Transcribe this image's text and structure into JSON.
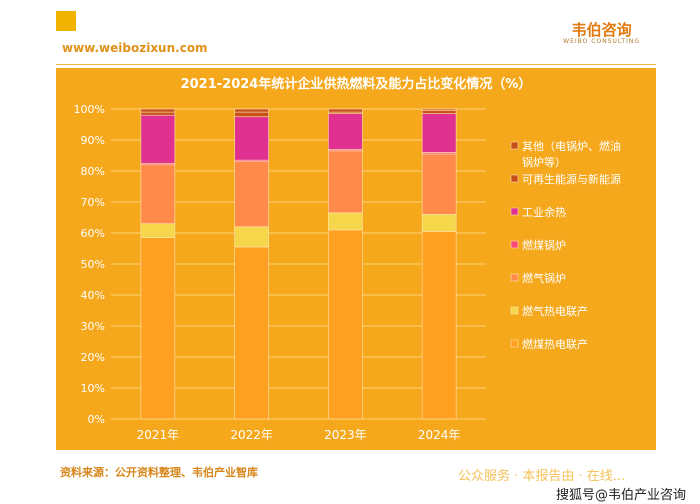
{
  "header": {
    "brand_name": "韦伯咨询",
    "brand_sub": "WEIBO CONSULTING",
    "site_url": "www.weibozixun.com"
  },
  "footer": {
    "source": "资料来源：公开资料整理、韦伯产业智库",
    "watermark_1": "公众服务 · 本报告由 · 在线...",
    "watermark_2": "搜狐号@韦伯产业咨询"
  },
  "colors": {
    "panel": "#f5a81c",
    "series": [
      "#ffa020",
      "#f6d64a",
      "#ff8a4a",
      "#ff4a78",
      "#e03090",
      "#c8501a"
    ]
  },
  "chart_data": {
    "type": "bar",
    "stacked": true,
    "title": "2021-2024年统计企业供热燃料及能力占比变化情况（%）",
    "categories": [
      "2021年",
      "2022年",
      "2023年",
      "2024年"
    ],
    "ylim": [
      0,
      100
    ],
    "yticks": [
      "0%",
      "10%",
      "20%",
      "30%",
      "40%",
      "50%",
      "60%",
      "70%",
      "80%",
      "90%",
      "100%"
    ],
    "grid": true,
    "legend_position": "right",
    "series": [
      {
        "name": "燃煤热电联产",
        "values": [
          58.5,
          55.5,
          61.0,
          60.5
        ]
      },
      {
        "name": "燃气热电联产",
        "values": [
          4.5,
          6.5,
          5.5,
          5.5
        ]
      },
      {
        "name": "燃气锅炉",
        "values": [
          19.0,
          21.0,
          20.0,
          19.5
        ]
      },
      {
        "name": "燃煤锅炉",
        "values": [
          0.5,
          0.5,
          0.5,
          0.5
        ]
      },
      {
        "name": "工业余热",
        "values": [
          15.5,
          14.0,
          11.5,
          12.5
        ]
      },
      {
        "name": "可再生能源与新能源",
        "values": [
          1.0,
          1.5,
          0.5,
          1.0
        ]
      },
      {
        "name": "其他（电锅炉、燃油锅炉等）",
        "values": [
          1.0,
          1.0,
          1.0,
          0.5
        ]
      }
    ]
  }
}
